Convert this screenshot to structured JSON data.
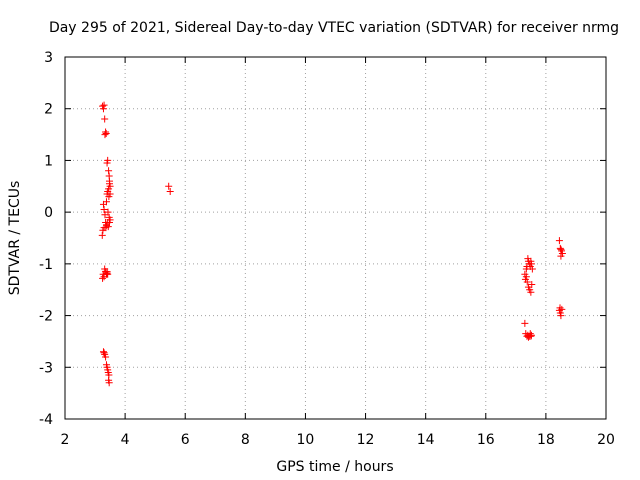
{
  "chart_data": {
    "type": "scatter",
    "title": "Day 295 of 2021, Sidereal Day-to-day VTEC variation (SDTVAR) for receiver nrmg",
    "xlabel": "GPS time / hours",
    "ylabel": "SDTVAR / TECUs",
    "xlim": [
      2,
      20
    ],
    "ylim": [
      -4,
      3
    ],
    "xticks": [
      2,
      4,
      6,
      8,
      10,
      12,
      14,
      16,
      18,
      20
    ],
    "yticks": [
      -4,
      -3,
      -2,
      -1,
      0,
      1,
      2,
      3
    ],
    "grid": true,
    "marker": "+",
    "color": "#ff0000",
    "series": [
      {
        "name": "SDTVAR",
        "x": [
          3.25,
          3.28,
          3.3,
          3.32,
          3.35,
          3.33,
          3.37,
          3.4,
          3.42,
          3.45,
          3.47,
          3.48,
          3.5,
          3.45,
          3.42,
          3.4,
          3.38,
          3.43,
          3.47,
          3.5,
          3.48,
          3.38,
          3.3,
          3.26,
          3.24,
          3.28,
          3.3,
          3.33,
          3.35,
          3.36,
          3.38,
          3.42,
          3.44,
          3.46,
          3.48,
          3.5,
          3.4,
          3.42,
          3.3,
          3.27,
          3.25,
          3.32,
          3.35,
          3.38,
          3.4,
          3.28,
          3.3,
          3.32,
          3.35,
          3.38,
          3.4,
          3.42,
          3.44,
          3.46,
          3.45,
          3.47,
          5.45,
          5.5,
          17.3,
          17.32,
          17.35,
          17.37,
          17.4,
          17.42,
          17.45,
          17.48,
          17.5,
          17.52,
          17.55,
          17.38,
          17.42,
          17.46,
          17.5,
          17.53,
          17.35,
          17.3,
          17.33,
          17.37,
          17.4,
          17.42,
          17.45,
          17.48,
          17.5,
          17.52,
          18.45,
          18.48,
          18.5,
          18.52,
          18.55,
          18.5,
          18.47,
          18.45,
          18.48,
          18.5,
          18.53
        ],
        "y": [
          2.05,
          2.0,
          2.07,
          1.8,
          1.55,
          1.5,
          1.52,
          0.95,
          1.0,
          0.8,
          0.7,
          0.6,
          0.5,
          0.45,
          0.4,
          0.35,
          0.2,
          0.0,
          -0.1,
          -0.15,
          -0.2,
          -0.25,
          -0.3,
          -0.35,
          -0.45,
          0.15,
          0.05,
          -0.05,
          -0.2,
          -0.3,
          -0.25,
          -0.2,
          -0.28,
          0.3,
          0.55,
          0.35,
          -1.15,
          -1.2,
          -1.25,
          -1.2,
          -1.28,
          -1.1,
          -1.15,
          -1.2,
          -1.18,
          -2.7,
          -2.72,
          -2.75,
          -2.8,
          -2.95,
          -3.0,
          -3.05,
          -3.1,
          -3.15,
          -3.25,
          -3.3,
          0.5,
          0.4,
          -1.2,
          -1.3,
          -1.1,
          -1.05,
          -0.9,
          -0.95,
          -1.0,
          -1.05,
          -0.95,
          -1.0,
          -1.1,
          -1.35,
          -1.45,
          -1.5,
          -1.55,
          -1.4,
          -1.25,
          -2.15,
          -2.35,
          -2.4,
          -2.38,
          -2.42,
          -2.4,
          -2.35,
          -2.4,
          -2.38,
          -0.55,
          -0.7,
          -0.72,
          -0.75,
          -0.8,
          -0.85,
          -1.85,
          -1.9,
          -1.95,
          -2.0,
          -1.88
        ]
      }
    ]
  }
}
